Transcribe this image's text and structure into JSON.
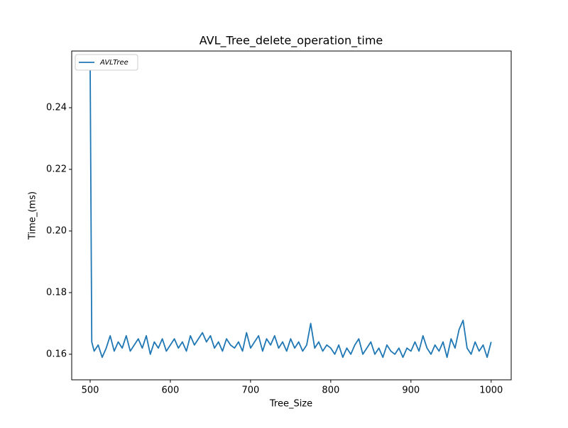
{
  "chart_data": {
    "type": "line",
    "title": "AVL_Tree_delete_operation_time",
    "xlabel": "Tree_Size",
    "ylabel": "Time_(ms)",
    "x": [
      500,
      502,
      505,
      510,
      515,
      520,
      525,
      530,
      535,
      540,
      545,
      550,
      555,
      560,
      565,
      570,
      575,
      580,
      585,
      590,
      595,
      600,
      605,
      610,
      615,
      620,
      625,
      630,
      635,
      640,
      645,
      650,
      655,
      660,
      665,
      670,
      675,
      680,
      685,
      690,
      695,
      700,
      705,
      710,
      715,
      720,
      725,
      730,
      735,
      740,
      745,
      750,
      755,
      760,
      765,
      770,
      775,
      780,
      785,
      790,
      795,
      800,
      805,
      810,
      815,
      820,
      825,
      830,
      835,
      840,
      845,
      850,
      855,
      860,
      865,
      870,
      875,
      880,
      885,
      890,
      895,
      900,
      905,
      910,
      915,
      920,
      925,
      930,
      935,
      940,
      945,
      950,
      955,
      960,
      965,
      970,
      975,
      980,
      985,
      990,
      995,
      1000
    ],
    "series": [
      {
        "name": "AVLTree",
        "color": "#1f77b4",
        "values": [
          0.254,
          0.164,
          0.161,
          0.163,
          0.159,
          0.162,
          0.166,
          0.161,
          0.164,
          0.162,
          0.166,
          0.161,
          0.163,
          0.165,
          0.162,
          0.166,
          0.16,
          0.164,
          0.162,
          0.165,
          0.161,
          0.163,
          0.165,
          0.162,
          0.164,
          0.161,
          0.166,
          0.163,
          0.165,
          0.167,
          0.164,
          0.166,
          0.162,
          0.164,
          0.161,
          0.165,
          0.163,
          0.162,
          0.164,
          0.161,
          0.167,
          0.162,
          0.164,
          0.166,
          0.161,
          0.165,
          0.163,
          0.166,
          0.162,
          0.164,
          0.161,
          0.165,
          0.162,
          0.164,
          0.161,
          0.163,
          0.17,
          0.162,
          0.164,
          0.161,
          0.163,
          0.162,
          0.16,
          0.163,
          0.159,
          0.162,
          0.16,
          0.163,
          0.165,
          0.16,
          0.162,
          0.164,
          0.16,
          0.162,
          0.159,
          0.163,
          0.161,
          0.16,
          0.162,
          0.159,
          0.162,
          0.161,
          0.164,
          0.161,
          0.166,
          0.162,
          0.16,
          0.163,
          0.161,
          0.164,
          0.159,
          0.165,
          0.162,
          0.168,
          0.171,
          0.162,
          0.16,
          0.164,
          0.161,
          0.163,
          0.159,
          0.164
        ]
      }
    ],
    "xlim": [
      477,
      1025
    ],
    "ylim": [
      0.1517,
      0.2584
    ],
    "xticks": [
      500,
      600,
      700,
      800,
      900,
      1000
    ],
    "yticks": [
      0.16,
      0.18,
      {
        "value": 0.2,
        "label": "0.20"
      },
      0.22,
      0.24
    ],
    "legend": "upper left"
  }
}
